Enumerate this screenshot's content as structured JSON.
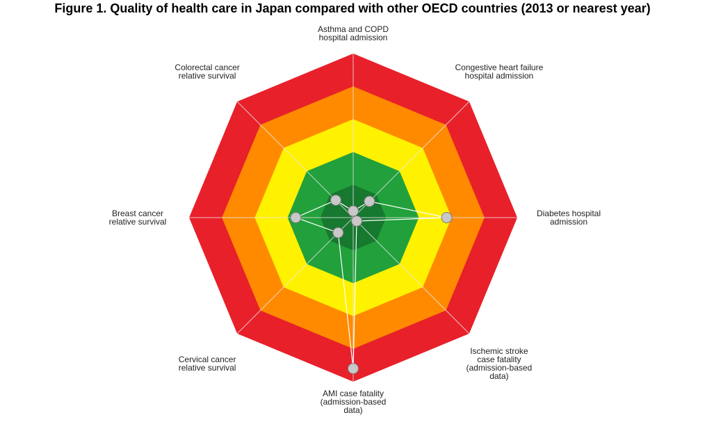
{
  "chart_data": {
    "type": "radar",
    "title": "Figure 1. Quality of health care in Japan compared with other OECD countries (2013 or nearest year)",
    "categories": [
      "Asthma and COPD\nhospital admission",
      "Congestive heart failure\nhospital admission",
      "Diabetes hospital\nadmission",
      "Ischemic stroke\ncase fatality\n(admission-based\ndata)",
      "AMI case fatality\n(admission-based\ndata)",
      "Cervical cancer\nrelative survival",
      "Breast cancer\nrelative survival",
      "Colorectal cancer\nrelative survival"
    ],
    "values": [
      0.2,
      0.7,
      2.85,
      0.15,
      4.6,
      0.65,
      1.75,
      0.75
    ],
    "point_color": "#c8c8c8",
    "rlim": [
      0,
      5
    ],
    "rings": [
      {
        "value": 5,
        "color": "#e8202a"
      },
      {
        "value": 4,
        "color": "#ff8a00"
      },
      {
        "value": 3,
        "color": "#fff200"
      },
      {
        "value": 2,
        "color": "#22a03c"
      },
      {
        "value": 1,
        "color": "#17782f"
      }
    ]
  }
}
